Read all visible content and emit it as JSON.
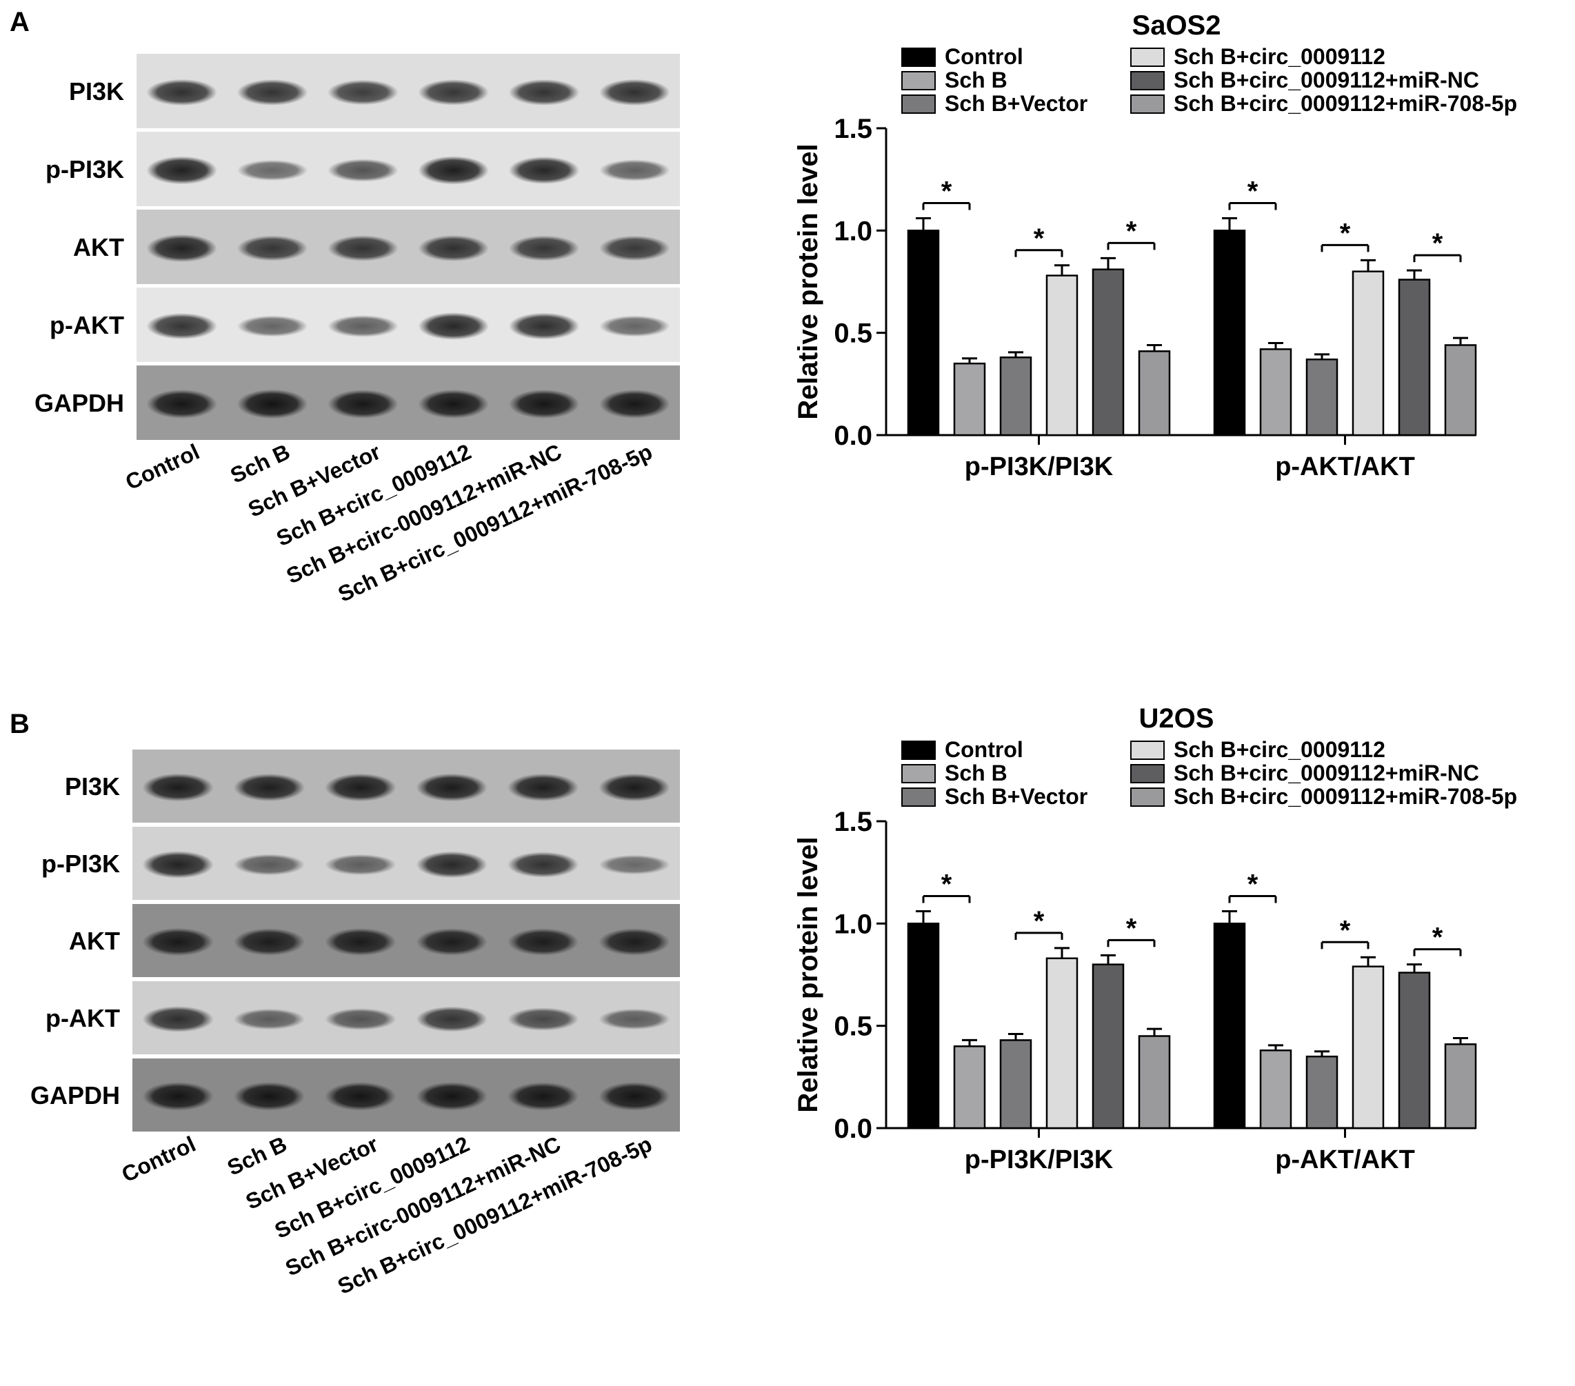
{
  "panels": [
    {
      "letter": "A",
      "blot": {
        "rows": [
          "PI3K",
          "p-PI3K",
          "AKT",
          "p-AKT",
          "GAPDH"
        ],
        "lanes": [
          "Control",
          "Sch B",
          "Sch B+Vector",
          "Sch B+circ_0009112",
          "Sch B+circ-0009112+miR-NC",
          "Sch B+circ_0009112+miR-708-5p"
        ],
        "band_intensity": [
          [
            0.8,
            0.78,
            0.72,
            0.76,
            0.78,
            0.8
          ],
          [
            0.9,
            0.45,
            0.58,
            0.92,
            0.86,
            0.5
          ],
          [
            0.88,
            0.74,
            0.76,
            0.78,
            0.74,
            0.72
          ],
          [
            0.78,
            0.48,
            0.52,
            0.86,
            0.82,
            0.48
          ],
          [
            0.95,
            0.98,
            0.94,
            0.95,
            0.95,
            0.94
          ]
        ],
        "background": [
          "#dedede",
          "#e2e2e2",
          "#c8c8c8",
          "#e6e6e6",
          "#9a9a9a"
        ]
      },
      "chart_data": {
        "type": "bar",
        "title": "SaOS2",
        "xlabel": "",
        "ylabel": "Relative protein level",
        "categories": [
          "p-PI3K/PI3K",
          "p-AKT/AKT"
        ],
        "ylim": [
          0,
          1.5
        ],
        "yticks": [
          "0.0",
          "0.5",
          "1.0",
          "1.5"
        ],
        "legend_position": "top",
        "series": [
          {
            "name": "Control",
            "color": "#000000",
            "values": [
              1.0,
              1.0
            ],
            "errors": [
              0.06,
              0.06
            ]
          },
          {
            "name": "Sch B",
            "color": "#a6a6a8",
            "values": [
              0.35,
              0.42
            ],
            "errors": [
              0.025,
              0.03
            ]
          },
          {
            "name": "Sch B+Vector",
            "color": "#7a7a7c",
            "values": [
              0.38,
              0.37
            ],
            "errors": [
              0.025,
              0.025
            ]
          },
          {
            "name": "Sch B+circ_0009112",
            "color": "#dcdcdc",
            "values": [
              0.78,
              0.8
            ],
            "errors": [
              0.05,
              0.055
            ]
          },
          {
            "name": "Sch B+circ_0009112+miR-NC",
            "color": "#5e5e60",
            "values": [
              0.81,
              0.76
            ],
            "errors": [
              0.055,
              0.045
            ]
          },
          {
            "name": "Sch B+circ_0009112+miR-708-5p",
            "color": "#9a9a9c",
            "values": [
              0.41,
              0.44
            ],
            "errors": [
              0.03,
              0.035
            ]
          }
        ],
        "significance": [
          [
            0,
            1
          ],
          [
            2,
            3
          ],
          [
            4,
            5
          ]
        ],
        "significance_label": "*"
      }
    },
    {
      "letter": "B",
      "blot": {
        "rows": [
          "PI3K",
          "p-PI3K",
          "AKT",
          "p-AKT",
          "GAPDH"
        ],
        "lanes": [
          "Control",
          "Sch B",
          "Sch B+Vector",
          "Sch B+circ_0009112",
          "Sch B+circ-0009112+miR-NC",
          "Sch B+circ_0009112+miR-708-5p"
        ],
        "band_intensity": [
          [
            0.92,
            0.9,
            0.92,
            0.92,
            0.9,
            0.92
          ],
          [
            0.88,
            0.5,
            0.48,
            0.84,
            0.78,
            0.4
          ],
          [
            0.92,
            0.88,
            0.9,
            0.88,
            0.88,
            0.88
          ],
          [
            0.8,
            0.48,
            0.54,
            0.76,
            0.62,
            0.48
          ],
          [
            0.96,
            0.96,
            0.96,
            0.96,
            0.94,
            0.96
          ]
        ],
        "background": [
          "#b6b6b6",
          "#d2d2d2",
          "#8e8e8e",
          "#cecece",
          "#8a8a8a"
        ]
      },
      "chart_data": {
        "type": "bar",
        "title": "U2OS",
        "xlabel": "",
        "ylabel": "Relative protein level",
        "categories": [
          "p-PI3K/PI3K",
          "p-AKT/AKT"
        ],
        "ylim": [
          0,
          1.5
        ],
        "yticks": [
          "0.0",
          "0.5",
          "1.0",
          "1.5"
        ],
        "legend_position": "top",
        "series": [
          {
            "name": "Control",
            "color": "#000000",
            "values": [
              1.0,
              1.0
            ],
            "errors": [
              0.06,
              0.06
            ]
          },
          {
            "name": "Sch B",
            "color": "#a6a6a8",
            "values": [
              0.4,
              0.38
            ],
            "errors": [
              0.03,
              0.025
            ]
          },
          {
            "name": "Sch B+Vector",
            "color": "#7a7a7c",
            "values": [
              0.43,
              0.35
            ],
            "errors": [
              0.03,
              0.025
            ]
          },
          {
            "name": "Sch B+circ_0009112",
            "color": "#dcdcdc",
            "values": [
              0.83,
              0.79
            ],
            "errors": [
              0.05,
              0.045
            ]
          },
          {
            "name": "Sch B+circ_0009112+miR-NC",
            "color": "#5e5e60",
            "values": [
              0.8,
              0.76
            ],
            "errors": [
              0.045,
              0.04
            ]
          },
          {
            "name": "Sch B+circ_0009112+miR-708-5p",
            "color": "#9a9a9c",
            "values": [
              0.45,
              0.41
            ],
            "errors": [
              0.035,
              0.03
            ]
          }
        ],
        "significance": [
          [
            0,
            1
          ],
          [
            2,
            3
          ],
          [
            4,
            5
          ]
        ],
        "significance_label": "*"
      }
    }
  ]
}
